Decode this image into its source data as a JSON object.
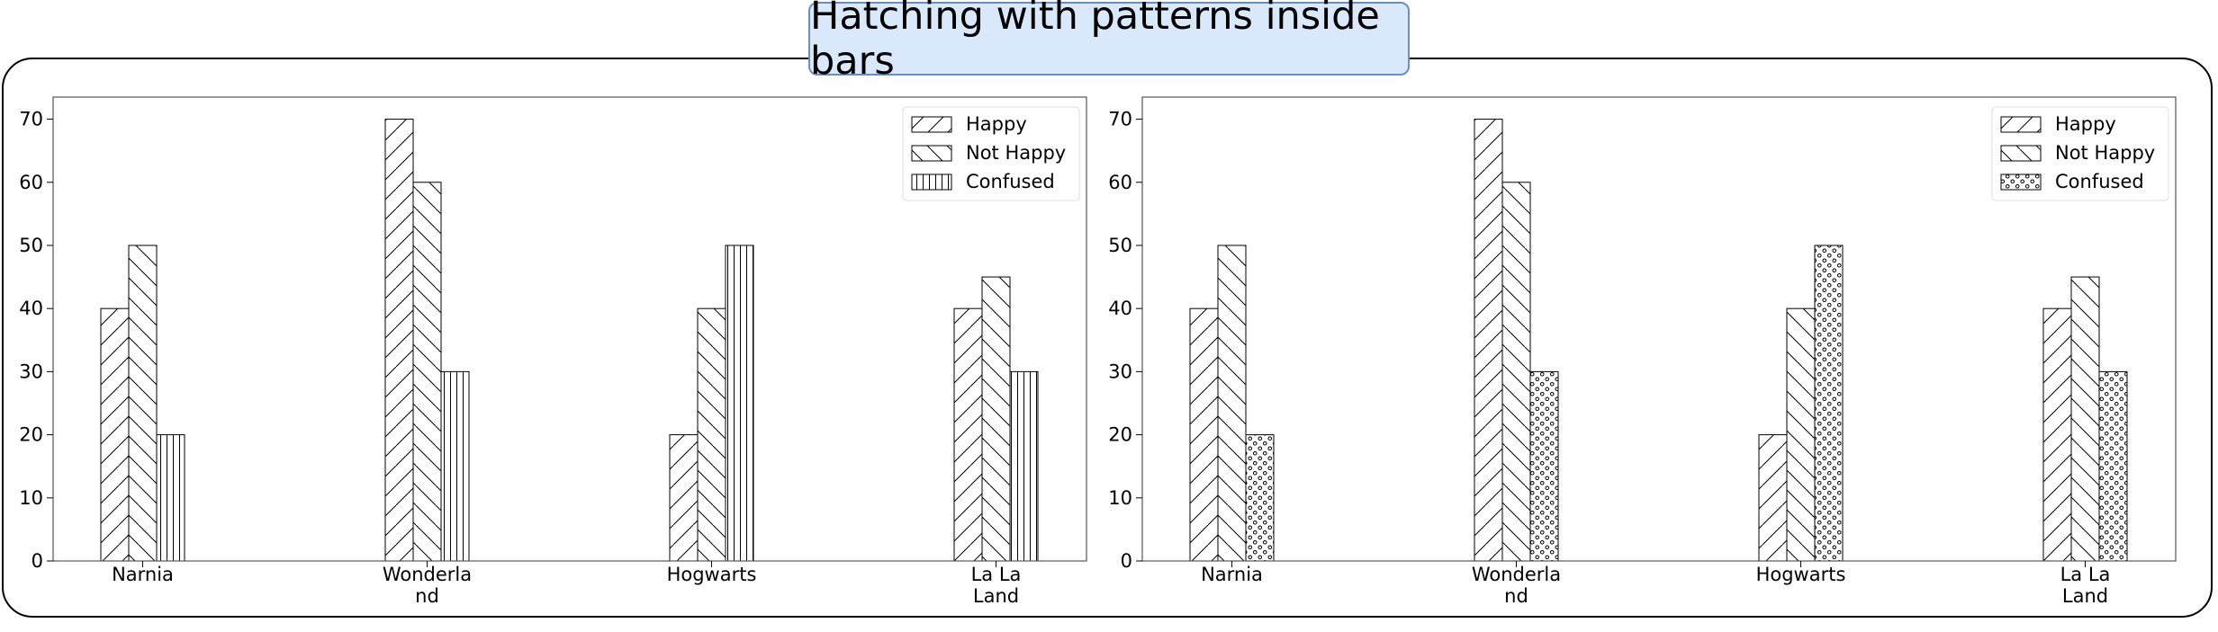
{
  "title": "Hatching with patterns inside bars",
  "colors": {
    "title_fill": "#dae8fc",
    "title_border": "#6c8ebf",
    "bar_fill": "#ffffff",
    "stroke": "#000000"
  },
  "chart_data": [
    {
      "type": "bar",
      "title": "",
      "xlabel": "",
      "ylabel": "",
      "categories": [
        "Narnia",
        "Wonderland",
        "Hogwarts",
        "La La Land"
      ],
      "category_labels": [
        [
          "Narnia"
        ],
        [
          "Wonderla",
          "nd"
        ],
        [
          "Hogwarts"
        ],
        [
          "La La",
          "Land"
        ]
      ],
      "series": [
        {
          "name": "Happy",
          "values": [
            40,
            70,
            20,
            40
          ],
          "hatch": "diag-forward"
        },
        {
          "name": "Not Happy",
          "values": [
            50,
            60,
            40,
            45
          ],
          "hatch": "diag-back"
        },
        {
          "name": "Confused",
          "values": [
            20,
            30,
            50,
            30
          ],
          "hatch": "vertical"
        }
      ],
      "ylim": [
        0,
        73.5
      ],
      "yticks": [
        0,
        10,
        20,
        30,
        40,
        50,
        60,
        70
      ],
      "grid": false,
      "legend": "top-right"
    },
    {
      "type": "bar",
      "title": "",
      "xlabel": "",
      "ylabel": "",
      "categories": [
        "Narnia",
        "Wonderland",
        "Hogwarts",
        "La La Land"
      ],
      "category_labels": [
        [
          "Narnia"
        ],
        [
          "Wonderla",
          "nd"
        ],
        [
          "Hogwarts"
        ],
        [
          "La La",
          "Land"
        ]
      ],
      "series": [
        {
          "name": "Happy",
          "values": [
            40,
            70,
            20,
            40
          ],
          "hatch": "diag-forward"
        },
        {
          "name": "Not Happy",
          "values": [
            50,
            60,
            40,
            45
          ],
          "hatch": "diag-back"
        },
        {
          "name": "Confused",
          "values": [
            20,
            30,
            50,
            30
          ],
          "hatch": "dots"
        }
      ],
      "ylim": [
        0,
        73.5
      ],
      "yticks": [
        0,
        10,
        20,
        30,
        40,
        50,
        60,
        70
      ],
      "grid": false,
      "legend": "top-right"
    }
  ]
}
